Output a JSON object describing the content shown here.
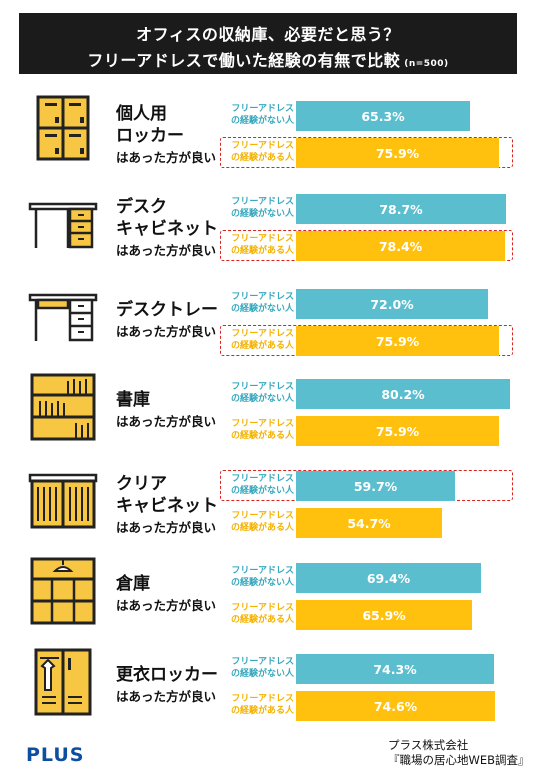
{
  "header": {
    "title_line1": "オフィスの収納庫、必要だと思う？",
    "title_line2": "フリーアドレスで働いた経験の有無で比較",
    "note": "(n=500)"
  },
  "legend": {
    "no_exp": "フリーアドレス\nの経験がない人",
    "has_exp": "フリーアドレス\nの経験がある人"
  },
  "colors": {
    "no_exp": "#5bbecf",
    "has_exp": "#ffc10d",
    "highlight": "#d9231f",
    "icon_fill": "#f7c744"
  },
  "footer": {
    "logo": "PLUS",
    "company": "プラス株式会社",
    "survey": "『職場の居心地WEB調査』"
  },
  "chart_data": {
    "type": "bar",
    "orientation": "horizontal",
    "title": "オフィスの収納庫、必要だと思う？ フリーアドレスで働いた経験の有無で比較 (n=500)",
    "unit": "%",
    "categories": [
      {
        "label_main": "個人用\nロッカー",
        "label_sub": "はあった方が良い",
        "icon": "locker-icon",
        "highlight": "has_exp"
      },
      {
        "label_main": "デスク\nキャビネット",
        "label_sub": "はあった方が良い",
        "icon": "desk-cabinet-icon",
        "highlight": "has_exp"
      },
      {
        "label_main": "デスクトレー",
        "label_sub": "はあった方が良い",
        "icon": "desk-tray-icon",
        "highlight": "has_exp"
      },
      {
        "label_main": "書庫",
        "label_sub": "はあった方が良い",
        "icon": "bookshelf-icon",
        "highlight": ""
      },
      {
        "label_main": "クリア\nキャビネット",
        "label_sub": "はあった方が良い",
        "icon": "clear-cabinet-icon",
        "highlight": "no_exp"
      },
      {
        "label_main": "倉庫",
        "label_sub": "はあった方が良い",
        "icon": "storehouse-icon",
        "highlight": ""
      },
      {
        "label_main": "更衣ロッカー",
        "label_sub": "はあった方が良い",
        "icon": "changing-locker-icon",
        "highlight": ""
      }
    ],
    "series": [
      {
        "key": "no_exp",
        "values": [
          65.3,
          78.7,
          72.0,
          80.2,
          59.7,
          69.4,
          74.3
        ],
        "labels": [
          "65.3%",
          "78.7%",
          "72.0%",
          "80.2%",
          "59.7%",
          "69.4%",
          "74.3%"
        ]
      },
      {
        "key": "has_exp",
        "values": [
          75.9,
          78.4,
          75.9,
          75.9,
          54.7,
          65.9,
          74.6
        ],
        "labels": [
          "75.9%",
          "78.4%",
          "75.9%",
          "75.9%",
          "54.7%",
          "65.9%",
          "74.6%"
        ]
      }
    ]
  }
}
